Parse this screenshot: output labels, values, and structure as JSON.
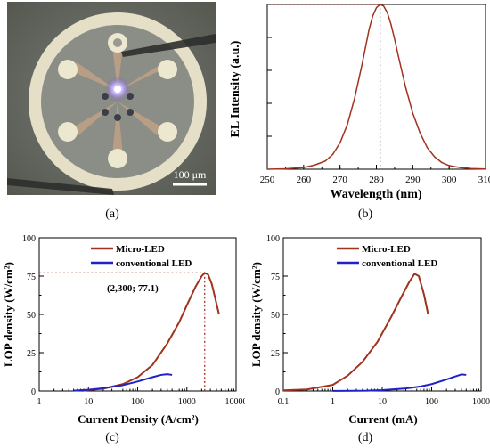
{
  "figure": {
    "captions": [
      "(a)",
      "(b)",
      "(c)",
      "(d)"
    ],
    "photo": {
      "scale_bar_label": "100 μm",
      "colors": {
        "background": "#6b6e6a",
        "ring": "#e6e2c8",
        "disc": "#8a8c86",
        "electrode": "#c7a98a",
        "emission": "#c9b6ff"
      }
    }
  },
  "chart_data": [
    {
      "id": "b",
      "type": "line",
      "title": "",
      "xlabel": "Wavelength (nm)",
      "ylabel": "EL Intensity (a.u.)",
      "xlim": [
        250,
        310
      ],
      "ylim": [
        0,
        1.0
      ],
      "x_ticks": [
        "250",
        "260",
        "270",
        "280",
        "290",
        "300",
        "310"
      ],
      "y_ticks": [],
      "peak_marker": {
        "x": 281,
        "y": 1.0,
        "style": "dotted"
      },
      "series": [
        {
          "color": "#a0321e",
          "x": [
            250,
            255,
            260,
            263,
            266,
            268,
            270,
            272,
            274,
            276,
            277,
            278,
            279,
            280,
            281,
            282,
            283,
            284,
            285,
            286,
            288,
            290,
            292,
            294,
            296,
            298,
            300,
            303,
            306,
            310
          ],
          "y": [
            0.0,
            0.003,
            0.01,
            0.025,
            0.05,
            0.09,
            0.16,
            0.27,
            0.43,
            0.63,
            0.74,
            0.85,
            0.93,
            0.98,
            1.0,
            0.99,
            0.95,
            0.88,
            0.79,
            0.69,
            0.5,
            0.34,
            0.22,
            0.13,
            0.075,
            0.04,
            0.022,
            0.01,
            0.004,
            0.001
          ]
        }
      ]
    },
    {
      "id": "c",
      "type": "line",
      "title": "",
      "xlabel": "Current Density (A/cm²)",
      "ylabel": "LOP density (W/cm²)",
      "xscale": "log",
      "xlim": [
        1,
        10000
      ],
      "ylim": [
        0,
        100
      ],
      "x_ticks": [
        "1",
        "10",
        "100",
        "1000",
        "10000"
      ],
      "y_ticks": [
        "0",
        "25",
        "50",
        "75",
        "100"
      ],
      "annotation": {
        "text": "(2,300; 77.1)",
        "x": 2300,
        "y": 77.1
      },
      "legend": {
        "position": "top-right"
      },
      "series": [
        {
          "name": "Micro-LED",
          "color": "#a0321e",
          "x": [
            8,
            20,
            50,
            100,
            200,
            400,
            700,
            1000,
            1500,
            2000,
            2300,
            2700,
            3200,
            3800,
            4500
          ],
          "y": [
            0.3,
            1.5,
            4.5,
            9,
            17,
            31,
            45,
            56,
            68,
            75,
            77.1,
            76,
            70,
            60,
            50
          ]
        },
        {
          "name": "conventional LED",
          "color": "#1f22c8",
          "x": [
            5,
            10,
            20,
            50,
            100,
            200,
            300,
            400,
            500
          ],
          "y": [
            0.2,
            0.8,
            1.8,
            3.8,
            6.2,
            9,
            10.5,
            11,
            10.5
          ]
        }
      ]
    },
    {
      "id": "d",
      "type": "line",
      "title": "",
      "xlabel": "Current (mA)",
      "ylabel": "LOP density (W/cm²)",
      "xscale": "log",
      "xlim": [
        0.1,
        1000
      ],
      "ylim": [
        0,
        100
      ],
      "x_ticks": [
        "0.1",
        "1",
        "10",
        "100",
        "1000"
      ],
      "y_ticks": [
        "0",
        "25",
        "50",
        "75",
        "100"
      ],
      "legend": {
        "position": "top-right"
      },
      "series": [
        {
          "name": "Micro-LED",
          "color": "#a0321e",
          "x": [
            0.1,
            0.3,
            1,
            2,
            4,
            8,
            15,
            25,
            35,
            45,
            55,
            70,
            85
          ],
          "y": [
            0.4,
            1.0,
            4,
            10,
            19,
            32,
            48,
            62,
            71,
            76.5,
            75,
            63,
            50
          ]
        },
        {
          "name": "conventional LED",
          "color": "#1f22c8",
          "x": [
            1,
            5,
            10,
            30,
            60,
            100,
            200,
            300,
            400,
            500
          ],
          "y": [
            0.05,
            0.2,
            0.6,
            1.7,
            3,
            4.5,
            7.5,
            9.5,
            10.8,
            10.5
          ]
        }
      ]
    }
  ]
}
